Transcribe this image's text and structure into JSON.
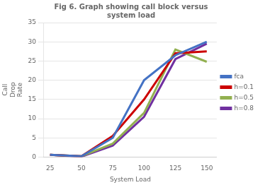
{
  "chart_data": {
    "type": "line",
    "title": "Fig 6. Graph showing call block versus\nsystem load",
    "x_label": "System Load",
    "y_label": "Call\nDrop\nRate",
    "x": [
      25,
      50,
      75,
      100,
      125,
      150
    ],
    "series": [
      {
        "name": "fca",
        "color": "#4472C4",
        "values": [
          0.6,
          0.2,
          5.0,
          20.0,
          26.5,
          30.0
        ]
      },
      {
        "name": "h=0.1",
        "color": "#CC0000",
        "values": [
          0.6,
          0.2,
          5.5,
          15.0,
          27.0,
          27.5
        ]
      },
      {
        "name": "h=0.5",
        "color": "#92B050",
        "values": [
          0.6,
          0.2,
          3.5,
          11.5,
          28.0,
          24.8
        ]
      },
      {
        "name": "h=0.8",
        "color": "#7030A0",
        "values": [
          0.6,
          0.1,
          3.0,
          10.5,
          25.5,
          29.5
        ]
      }
    ],
    "xlim": [
      20,
      158
    ],
    "xticks": [
      25,
      50,
      75,
      100,
      125,
      150
    ],
    "ylim": [
      0,
      35
    ],
    "yticks": [
      0,
      5,
      10,
      15,
      20,
      25,
      30,
      35
    ],
    "grid": "y",
    "legend": "right"
  }
}
